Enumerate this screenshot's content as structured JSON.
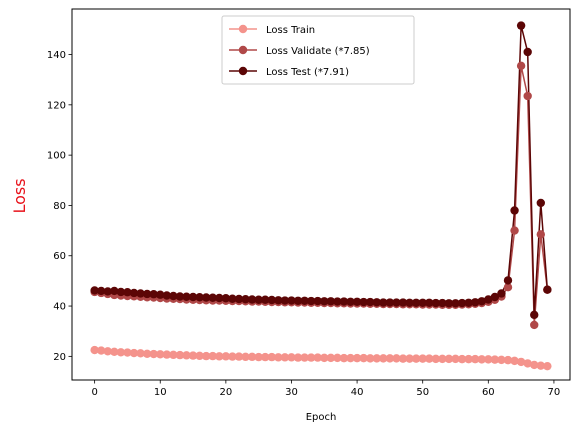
{
  "chart_data": {
    "type": "line",
    "title": "",
    "xlabel": "Epoch",
    "ylabel": "Loss",
    "ylabel_color": "#e8111a",
    "xlim": [
      -3.45,
      72.45
    ],
    "ylim": [
      10.6,
      158.1
    ],
    "xticks": [
      0,
      10,
      20,
      30,
      40,
      50,
      60,
      70
    ],
    "yticks": [
      20,
      40,
      60,
      80,
      100,
      120,
      140
    ],
    "grid": false,
    "legend_position": "top-center",
    "x": [
      0,
      1,
      2,
      3,
      4,
      5,
      6,
      7,
      8,
      9,
      10,
      11,
      12,
      13,
      14,
      15,
      16,
      17,
      18,
      19,
      20,
      21,
      22,
      23,
      24,
      25,
      26,
      27,
      28,
      29,
      30,
      31,
      32,
      33,
      34,
      35,
      36,
      37,
      38,
      39,
      40,
      41,
      42,
      43,
      44,
      45,
      46,
      47,
      48,
      49,
      50,
      51,
      52,
      53,
      54,
      55,
      56,
      57,
      58,
      59,
      60,
      61,
      62,
      63,
      64,
      65,
      66,
      67,
      68,
      69
    ],
    "series": [
      {
        "name": "Loss Train",
        "color": "#f4938c",
        "marker": "circle",
        "values": [
          22.5,
          22.3,
          22.0,
          21.8,
          21.6,
          21.5,
          21.3,
          21.2,
          21.0,
          20.9,
          20.8,
          20.7,
          20.6,
          20.5,
          20.4,
          20.3,
          20.2,
          20.1,
          20.1,
          20.0,
          20.0,
          19.9,
          19.9,
          19.8,
          19.8,
          19.7,
          19.7,
          19.7,
          19.6,
          19.6,
          19.6,
          19.5,
          19.5,
          19.5,
          19.5,
          19.4,
          19.4,
          19.4,
          19.3,
          19.3,
          19.3,
          19.3,
          19.2,
          19.2,
          19.2,
          19.2,
          19.2,
          19.1,
          19.1,
          19.1,
          19.1,
          19.1,
          19.0,
          19.0,
          19.0,
          19.0,
          18.9,
          18.9,
          18.9,
          18.8,
          18.8,
          18.7,
          18.6,
          18.5,
          18.2,
          17.8,
          17.2,
          16.6,
          16.3,
          16.1
        ]
      },
      {
        "name": "Loss Validate (*7.85)",
        "color": "#b04848",
        "marker": "circle",
        "values": [
          45.6,
          45.2,
          44.8,
          44.4,
          44.2,
          44.0,
          43.9,
          43.7,
          43.5,
          43.4,
          43.2,
          43.0,
          42.9,
          42.8,
          42.6,
          42.5,
          42.4,
          42.3,
          42.2,
          42.2,
          42.1,
          42.0,
          42.0,
          41.9,
          41.8,
          41.8,
          41.7,
          41.6,
          41.6,
          41.5,
          41.5,
          41.4,
          41.4,
          41.3,
          41.3,
          41.2,
          41.2,
          41.1,
          41.1,
          41.0,
          41.0,
          41.0,
          40.9,
          40.9,
          40.8,
          40.8,
          40.8,
          40.7,
          40.7,
          40.7,
          40.6,
          40.6,
          40.6,
          40.5,
          40.5,
          40.5,
          40.6,
          40.7,
          40.9,
          41.2,
          41.7,
          42.5,
          43.8,
          47.5,
          70.0,
          135.5,
          123.5,
          32.5,
          68.5,
          46.5
        ]
      },
      {
        "name": "Loss Test (*7.91)",
        "color": "#5c0606",
        "marker": "circle",
        "values": [
          46.2,
          46.0,
          45.8,
          46.0,
          45.6,
          45.5,
          45.2,
          45.0,
          44.8,
          44.7,
          44.5,
          44.2,
          44.0,
          43.8,
          43.7,
          43.6,
          43.5,
          43.4,
          43.3,
          43.2,
          43.1,
          42.9,
          42.8,
          42.7,
          42.6,
          42.5,
          42.5,
          42.4,
          42.3,
          42.2,
          42.2,
          42.1,
          42.1,
          42.0,
          42.0,
          41.9,
          41.9,
          41.8,
          41.8,
          41.7,
          41.7,
          41.6,
          41.6,
          41.5,
          41.4,
          41.4,
          41.4,
          41.4,
          41.3,
          41.3,
          41.3,
          41.3,
          41.2,
          41.2,
          41.1,
          41.1,
          41.2,
          41.3,
          41.5,
          41.9,
          42.6,
          43.6,
          45.0,
          50.2,
          78.0,
          151.5,
          141.0,
          36.5,
          81.0,
          46.5
        ]
      }
    ]
  }
}
